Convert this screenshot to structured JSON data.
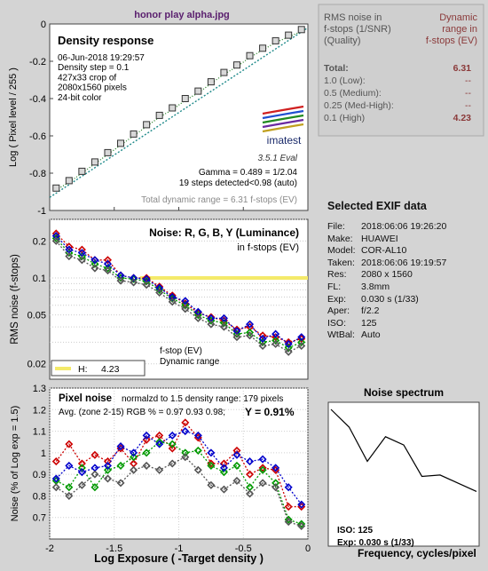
{
  "window_title": "honor play alpha.jpg",
  "summary_table": {
    "header_left": [
      "RMS noise in",
      "f-stops (1/SNR)",
      "(Quality)"
    ],
    "header_right": [
      "Dynamic",
      "range in",
      "f-stops (EV)"
    ],
    "rows": [
      {
        "label": "Total:",
        "value": "6.31"
      },
      {
        "label": "1.0  (Low):",
        "value": "--"
      },
      {
        "label": "0.5  (Medium):",
        "value": "--"
      },
      {
        "label": "0.25 (Med-High):",
        "value": "--"
      },
      {
        "label": "0.1  (High)",
        "value": "4.23"
      }
    ],
    "accent_color": "#8b3a3a"
  },
  "exif": {
    "title": "Selected EXIF data",
    "rows": [
      {
        "k": "File:",
        "v": "2018:06:06 19:26:20"
      },
      {
        "k": "Make:",
        "v": "HUAWEI"
      },
      {
        "k": "Model:",
        "v": "COR-AL10"
      },
      {
        "k": "Taken:",
        "v": "2018:06:06 19:19:57"
      },
      {
        "k": "Res:",
        "v": "2080 x 1560"
      },
      {
        "k": "FL:",
        "v": "3.8mm"
      },
      {
        "k": "Exp:",
        "v": "0.030 s  (1/33)"
      },
      {
        "k": "Aper:",
        "v": "f/2.2"
      },
      {
        "k": "ISO:",
        "v": "125"
      },
      {
        "k": "WtBal:",
        "v": "Auto"
      }
    ]
  },
  "density_info": {
    "title": "Density response",
    "lines": [
      "06-Jun-2018 19:29:57",
      "Density step = 0.1",
      "427x33 crop of",
      "2080x1560 pixels",
      "24-bit color"
    ],
    "logo_text": "imatest",
    "version": "3.5.1  Eval",
    "gamma": "Gamma = 0.489 = 1/2.04",
    "steps": "19 steps detected<0.98 (auto)",
    "total_dr": "Total dynamic range = 6.31 f-stops (EV)"
  },
  "noise_fstop_info": {
    "title": "Noise: R, G, B, Y (Luminance)",
    "subtitle": "in f-stops (EV)",
    "legend_lines": [
      "f-stop (EV)",
      "Dynamic range"
    ],
    "h_label": "H:",
    "h_value": "4.23"
  },
  "pixel_noise_info": {
    "title": "Pixel noise",
    "norm": "normalzd to 1.5 density range: 179 pixels",
    "avg": "Avg. (zone 2-15) RGB % = 0.97  0.93  0.98;",
    "y": "Y = 0.91%"
  },
  "spectrum_info": {
    "title": "Noise spectrum",
    "iso": "ISO:    125",
    "exp": "Exp:   0.030 s  (1/33)",
    "xlabel_partial": "Frequency, cycles/pixel"
  },
  "chart_data": [
    {
      "type": "scatter",
      "title": "Density response",
      "ylabel": "Log ( Pixel level / 255 )",
      "xlim": [
        -2,
        0
      ],
      "ylim": [
        -1,
        0
      ],
      "yticks": [
        -1,
        -0.8,
        -0.6,
        -0.4,
        -0.2,
        0
      ],
      "x": [
        -1.95,
        -1.85,
        -1.75,
        -1.65,
        -1.55,
        -1.45,
        -1.35,
        -1.25,
        -1.15,
        -1.05,
        -0.95,
        -0.85,
        -0.75,
        -0.65,
        -0.55,
        -0.45,
        -0.35,
        -0.25,
        -0.15,
        -0.05
      ],
      "y": [
        -0.88,
        -0.84,
        -0.79,
        -0.74,
        -0.69,
        -0.64,
        -0.59,
        -0.54,
        -0.49,
        -0.45,
        -0.4,
        -0.36,
        -0.31,
        -0.26,
        -0.22,
        -0.17,
        -0.13,
        -0.09,
        -0.06,
        -0.03
      ],
      "fit_line": {
        "x": [
          -2,
          0
        ],
        "y": [
          -0.93,
          -0.02
        ]
      }
    },
    {
      "type": "line",
      "title": "Noise: R, G, B, Y (Luminance)",
      "ylabel": "RMS noise (f-stops)",
      "yscale": "log",
      "ylim": [
        0.015,
        0.3
      ],
      "yticks": [
        0.02,
        0.05,
        0.1,
        0.2
      ],
      "xlim": [
        -2,
        0
      ],
      "x": [
        -1.95,
        -1.85,
        -1.75,
        -1.65,
        -1.55,
        -1.45,
        -1.35,
        -1.25,
        -1.15,
        -1.05,
        -0.95,
        -0.85,
        -0.75,
        -0.65,
        -0.55,
        -0.45,
        -0.35,
        -0.25,
        -0.15,
        -0.05
      ],
      "series": [
        {
          "color": "#cc0000",
          "values": [
            0.23,
            0.18,
            0.17,
            0.14,
            0.14,
            0.105,
            0.1,
            0.1,
            0.085,
            0.072,
            0.062,
            0.052,
            0.048,
            0.045,
            0.038,
            0.04,
            0.034,
            0.033,
            0.03,
            0.032
          ]
        },
        {
          "color": "#009900",
          "values": [
            0.21,
            0.16,
            0.15,
            0.13,
            0.12,
            0.1,
            0.098,
            0.094,
            0.08,
            0.068,
            0.06,
            0.05,
            0.045,
            0.043,
            0.035,
            0.036,
            0.03,
            0.031,
            0.027,
            0.03
          ]
        },
        {
          "color": "#0000cc",
          "values": [
            0.22,
            0.17,
            0.16,
            0.14,
            0.13,
            0.105,
            0.1,
            0.098,
            0.083,
            0.07,
            0.065,
            0.053,
            0.047,
            0.047,
            0.037,
            0.042,
            0.032,
            0.035,
            0.029,
            0.033
          ]
        },
        {
          "color": "#555555",
          "values": [
            0.2,
            0.15,
            0.14,
            0.12,
            0.115,
            0.095,
            0.092,
            0.088,
            0.076,
            0.064,
            0.056,
            0.047,
            0.042,
            0.04,
            0.033,
            0.034,
            0.028,
            0.029,
            0.025,
            0.028
          ]
        }
      ],
      "threshold": {
        "y": 0.1,
        "x_from": -1.3,
        "x_to": 0,
        "color": "#f4ea6a"
      }
    },
    {
      "type": "line",
      "title": "Pixel noise",
      "ylabel": "Noise (% of Log exp = 1.5)",
      "xlabel": "Log Exposure ( -Target density )",
      "xlim": [
        -2,
        0
      ],
      "ylim": [
        0.6,
        1.3
      ],
      "xticks": [
        -2,
        -1.5,
        -1,
        -0.5,
        0
      ],
      "yticks": [
        0.7,
        0.8,
        0.9,
        1,
        1.1,
        1.2,
        1.3
      ],
      "x": [
        -1.95,
        -1.85,
        -1.75,
        -1.65,
        -1.55,
        -1.45,
        -1.35,
        -1.25,
        -1.15,
        -1.05,
        -0.95,
        -0.85,
        -0.75,
        -0.65,
        -0.55,
        -0.45,
        -0.35,
        -0.25,
        -0.15,
        -0.05
      ],
      "series": [
        {
          "color": "#cc0000",
          "values": [
            0.96,
            1.04,
            0.95,
            0.99,
            0.96,
            1.02,
            0.95,
            1.06,
            1.08,
            1.02,
            1.14,
            1.07,
            0.95,
            0.95,
            1.01,
            0.9,
            0.93,
            0.92,
            0.75,
            0.75
          ]
        },
        {
          "color": "#009900",
          "values": [
            0.87,
            0.84,
            0.93,
            0.84,
            0.92,
            0.94,
            0.98,
            1.0,
            1.05,
            1.04,
            1.0,
            1.01,
            0.94,
            0.91,
            0.94,
            0.84,
            0.92,
            0.86,
            0.69,
            0.67
          ]
        },
        {
          "color": "#0000cc",
          "values": [
            0.88,
            0.94,
            0.91,
            0.93,
            0.94,
            1.03,
            1.0,
            1.08,
            1.04,
            1.08,
            1.1,
            1.08,
            1.0,
            0.93,
            0.99,
            0.96,
            0.97,
            0.93,
            0.84,
            0.76
          ]
        },
        {
          "color": "#555555",
          "values": [
            0.84,
            0.8,
            0.85,
            0.9,
            0.88,
            0.86,
            0.92,
            0.94,
            0.92,
            0.95,
            0.98,
            0.92,
            0.85,
            0.83,
            0.87,
            0.81,
            0.86,
            0.84,
            0.68,
            0.66
          ]
        }
      ]
    },
    {
      "type": "line",
      "title": "Noise spectrum",
      "ylim": [
        0,
        1
      ],
      "x": [
        0,
        0.06,
        0.12,
        0.18,
        0.24,
        0.3,
        0.36,
        0.42,
        0.48
      ],
      "values": [
        1.0,
        0.87,
        0.62,
        0.8,
        0.74,
        0.51,
        0.52,
        0.46,
        0.4
      ],
      "color": "#000000"
    }
  ]
}
